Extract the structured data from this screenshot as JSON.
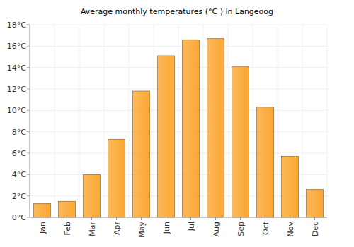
{
  "chart_data": {
    "type": "bar",
    "title": "Average monthly temperatures (°C ) in Langeoog",
    "categories": [
      "Jan",
      "Feb",
      "Mar",
      "Apr",
      "May",
      "Jun",
      "Jul",
      "Aug",
      "Sep",
      "Oct",
      "Nov",
      "Dec"
    ],
    "values": [
      1.3,
      1.5,
      4.0,
      7.3,
      11.8,
      15.1,
      16.6,
      16.7,
      14.1,
      10.3,
      5.7,
      2.6
    ],
    "color": "#fba732",
    "ylim": [
      0,
      18
    ],
    "yticks": [
      {
        "value": 0,
        "label": "0°C"
      },
      {
        "value": 2,
        "label": "2°C"
      },
      {
        "value": 4,
        "label": "4°C"
      },
      {
        "value": 6,
        "label": "6°C"
      },
      {
        "value": 8,
        "label": "8°C"
      },
      {
        "value": 10,
        "label": "10°C"
      },
      {
        "value": 12,
        "label": "12°C"
      },
      {
        "value": 14,
        "label": "14°C"
      },
      {
        "value": 16,
        "label": "16°C"
      },
      {
        "value": 18,
        "label": "18°C"
      }
    ],
    "grid": true
  }
}
